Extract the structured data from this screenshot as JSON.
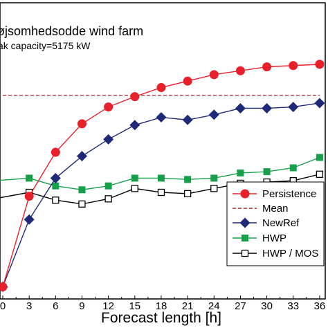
{
  "chart_data": {
    "type": "line",
    "title": "øjsomhedsodde wind farm",
    "subtitle": "ak capacity=5175 kW",
    "xlabel": "Forecast length [h]",
    "x": [
      0,
      3,
      6,
      9,
      12,
      15,
      18,
      21,
      24,
      27,
      30,
      33,
      36
    ],
    "xticks": [
      "0",
      "3",
      "6",
      "9",
      "12",
      "15",
      "18",
      "21",
      "24",
      "27",
      "30",
      "33",
      "36"
    ],
    "xlim": [
      0,
      36
    ],
    "ylim": [
      0,
      100
    ],
    "grid": false,
    "legend_position": "bottom-right",
    "series": [
      {
        "name": "Persistence",
        "color": "#e8202a",
        "marker": "circle",
        "line": "solid",
        "x": [
          0,
          3,
          6,
          9,
          12,
          15,
          18,
          21,
          24,
          27,
          30,
          33,
          36
        ],
        "values": [
          2,
          37,
          54,
          65,
          71.5,
          75.5,
          79,
          81.5,
          84,
          85.5,
          87,
          87.5,
          88
        ]
      },
      {
        "name": "Mean",
        "color": "#9b2d2d",
        "marker": "none",
        "line": "dashed",
        "x": [
          0,
          36
        ],
        "values": [
          76,
          76
        ]
      },
      {
        "name": "NewRef",
        "color": "#1e2a78",
        "marker": "diamond",
        "line": "solid",
        "x": [
          0,
          3,
          6,
          9,
          12,
          15,
          18,
          21,
          24,
          27,
          30,
          33,
          36
        ],
        "values": [
          2,
          28,
          44,
          52.5,
          59,
          64.5,
          67.5,
          66.5,
          68.5,
          71,
          71,
          71.5,
          73
        ]
      },
      {
        "name": "HWP",
        "color": "#16a04a",
        "marker": "square",
        "line": "solid",
        "x": [
          -1,
          3,
          6,
          9,
          12,
          15,
          18,
          21,
          24,
          27,
          30,
          33,
          36
        ],
        "values": [
          43,
          44,
          41,
          39.5,
          41,
          44,
          44,
          43.5,
          44,
          46,
          46.5,
          48,
          52
        ]
      },
      {
        "name": "HWP / MOS",
        "color": "#000000",
        "marker": "open-square",
        "line": "solid",
        "x": [
          -1,
          3,
          6,
          9,
          12,
          15,
          18,
          21,
          24,
          27,
          30,
          33,
          36
        ],
        "values": [
          36,
          38.5,
          35.5,
          34,
          36,
          40,
          38.5,
          38,
          40,
          42,
          42.5,
          43,
          45.5
        ]
      }
    ]
  }
}
